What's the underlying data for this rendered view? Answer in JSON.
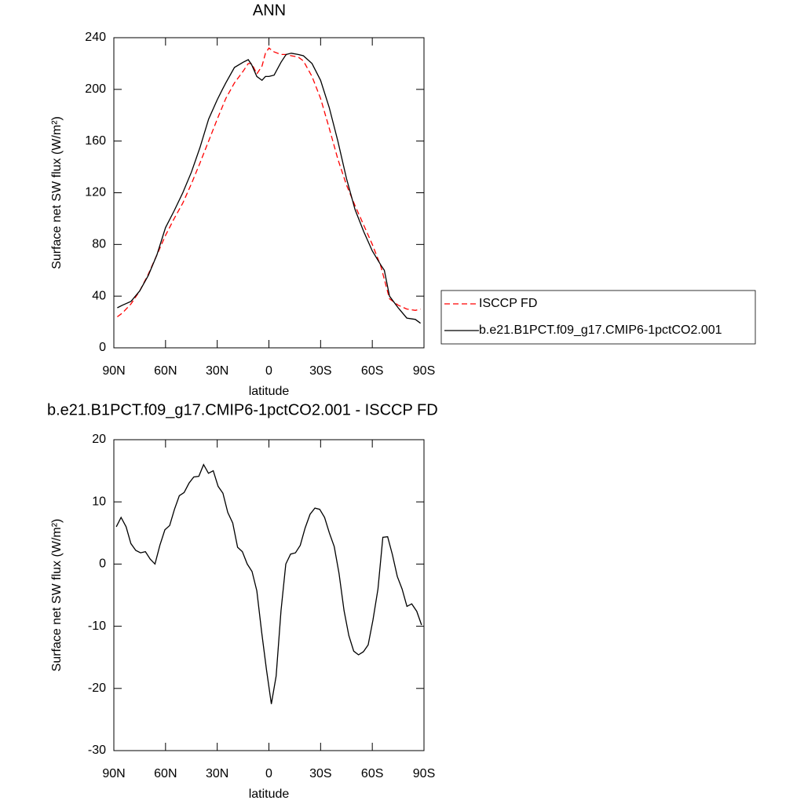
{
  "chart_data": [
    {
      "type": "line",
      "title": "ANN",
      "xlabel": "latitude",
      "ylabel": "Surface net SW flux (W/m²)",
      "xlim": [
        90,
        -90
      ],
      "xticks": [
        {
          "value": 90,
          "label": "90N"
        },
        {
          "value": 60,
          "label": "60N"
        },
        {
          "value": 30,
          "label": "30N"
        },
        0,
        {
          "value": -30,
          "label": "30S"
        },
        {
          "value": -60,
          "label": "60S"
        },
        {
          "value": -90,
          "label": "90S"
        }
      ],
      "ylim": [
        0,
        240
      ],
      "yticks": [
        0,
        40,
        80,
        120,
        160,
        200,
        240
      ],
      "legend": "right",
      "series": [
        {
          "name": "ISCCP FD",
          "color": "#ff0000",
          "style": "dashed",
          "x": [
            88,
            85,
            80,
            75,
            70,
            65,
            60,
            55,
            50,
            45,
            40,
            35,
            30,
            25,
            20,
            15,
            12,
            10,
            7,
            4,
            2,
            0,
            -3,
            -7,
            -10,
            -13,
            -17,
            -20,
            -25,
            -30,
            -35,
            -40,
            -45,
            -50,
            -55,
            -60,
            -65,
            -70,
            -75,
            -80,
            -85,
            -88
          ],
          "values": [
            24,
            27,
            34,
            44,
            57,
            72,
            87,
            100,
            112,
            127,
            143,
            160,
            177,
            193,
            205,
            214,
            220,
            220,
            212,
            218,
            228,
            232,
            229,
            227,
            227,
            226,
            225,
            222,
            210,
            193,
            170,
            146,
            126,
            110,
            95,
            80,
            63,
            38,
            33,
            30,
            29,
            30
          ]
        },
        {
          "name": "b.e21.B1PCT.f09_g17.CMIP6-1pctCO2.001",
          "color": "#000000",
          "style": "solid",
          "x": [
            88,
            85,
            80,
            75,
            70,
            65,
            60,
            55,
            50,
            45,
            40,
            35,
            30,
            27,
            25,
            20,
            15,
            12,
            10,
            7,
            4,
            2,
            0,
            -3,
            -7,
            -10,
            -13,
            -17,
            -20,
            -25,
            -30,
            -35,
            -40,
            -45,
            -50,
            -55,
            -60,
            -65,
            -67,
            -70,
            -75,
            -80,
            -85,
            -88
          ],
          "values": [
            31,
            33,
            36,
            44,
            56,
            72,
            93,
            106,
            120,
            136,
            155,
            177,
            192,
            200,
            205,
            217,
            221,
            223,
            219,
            210,
            207,
            210,
            210,
            211,
            221,
            227,
            228,
            227,
            226,
            220,
            207,
            186,
            160,
            131,
            107,
            90,
            75,
            64,
            60,
            40,
            31,
            23,
            22,
            19
          ]
        }
      ]
    },
    {
      "type": "line",
      "title": "b.e21.B1PCT.f09_g17.CMIP6-1pctCO2.001 - ISCCP FD",
      "xlabel": "latitude",
      "ylabel": "Surface net SW flux (W/m²)",
      "xlim": [
        90,
        -90
      ],
      "xticks": [
        {
          "value": 90,
          "label": "90N"
        },
        {
          "value": 60,
          "label": "60N"
        },
        {
          "value": 30,
          "label": "30N"
        },
        0,
        {
          "value": -30,
          "label": "30S"
        },
        {
          "value": -60,
          "label": "60S"
        },
        {
          "value": -90,
          "label": "90S"
        }
      ],
      "ylim": [
        -30,
        20
      ],
      "yticks": [
        -30,
        -20,
        -10,
        0,
        10,
        20
      ],
      "series": [
        {
          "color": "#000000",
          "style": "solid",
          "x": [
            88.6,
            85.8,
            82.9,
            80.1,
            77.3,
            74.5,
            71.7,
            68.9,
            66.1,
            63.3,
            60.4,
            57.6,
            54.8,
            52.0,
            49.2,
            46.4,
            43.6,
            40.7,
            37.9,
            35.1,
            32.3,
            29.5,
            26.7,
            23.9,
            21.0,
            18.2,
            15.4,
            12.6,
            9.8,
            7.0,
            4.2,
            1.4,
            -1.4,
            -4.2,
            -7.0,
            -9.8,
            -12.6,
            -15.4,
            -18.2,
            -21.0,
            -23.9,
            -26.7,
            -29.5,
            -32.3,
            -35.1,
            -37.9,
            -40.7,
            -43.6,
            -46.4,
            -49.2,
            -52.0,
            -54.8,
            -57.6,
            -60.4,
            -63.3,
            -66.1,
            -68.9,
            -71.7,
            -74.5,
            -77.3,
            -80.1,
            -82.9,
            -85.8,
            -88.6
          ],
          "values": [
            6,
            7.5,
            6,
            3.3,
            2.2,
            1.8,
            2,
            0.8,
            0,
            3,
            5.5,
            6.2,
            8.8,
            11,
            11.5,
            13,
            14,
            14.1,
            16,
            14.6,
            15,
            12.5,
            11.4,
            8.3,
            6.6,
            2.7,
            2,
            0,
            -1.2,
            -4.3,
            -11,
            -17,
            -22.5,
            -18,
            -7.5,
            0,
            1.6,
            1.8,
            3,
            5.8,
            8,
            9,
            8.8,
            7.5,
            5,
            2.8,
            -1.5,
            -7.5,
            -11.5,
            -14,
            -14.6,
            -14.1,
            -13,
            -9,
            -4,
            4.3,
            4.4,
            1.5,
            -2,
            -4,
            -6.8,
            -6.4,
            -7.6,
            -9.8
          ]
        }
      ]
    }
  ]
}
